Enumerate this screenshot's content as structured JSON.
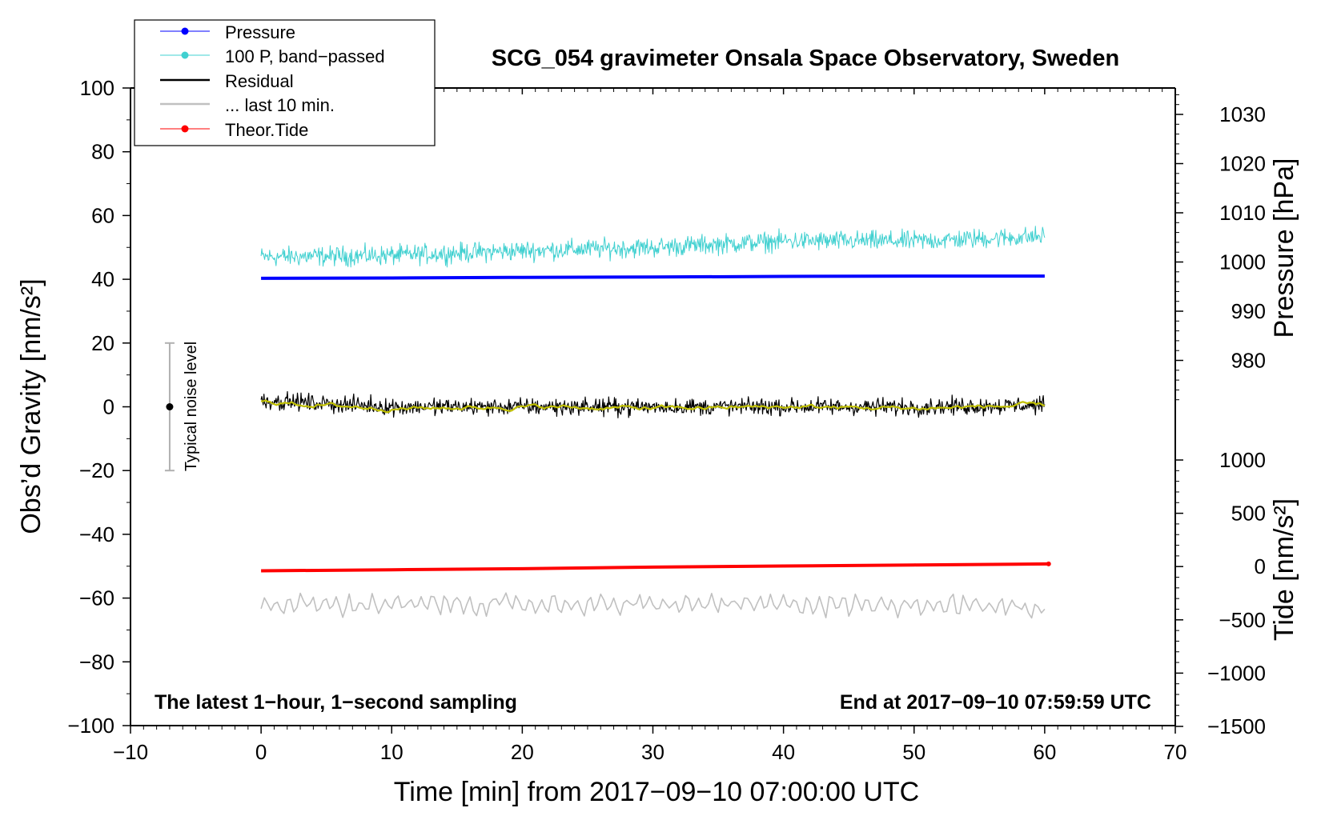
{
  "chart_data": {
    "type": "line",
    "title": "SCG_054 gravimeter Onsala Space Observatory, Sweden",
    "xlabel": "Time [min] from 2017−09−10 07:00:00 UTC",
    "ylabel_left": "Obs’d Gravity [nm/s²]",
    "ylabel_right_top": "Pressure [hPa]",
    "ylabel_right_bottom": "Tide [nm/s²]",
    "xlim": [
      -10,
      70
    ],
    "ylim": [
      -100,
      100
    ],
    "pressure_axis_lim": [
      970,
      1035
    ],
    "tide_axis_lim": [
      -1500,
      1000
    ],
    "x_ticks": [
      -10,
      0,
      10,
      20,
      30,
      40,
      50,
      60,
      70
    ],
    "x_tick_labels": [
      "−10",
      "0",
      "10",
      "20",
      "30",
      "40",
      "50",
      "60",
      "70"
    ],
    "y_ticks": [
      -100,
      -80,
      -60,
      -40,
      -20,
      0,
      20,
      40,
      60,
      80,
      100
    ],
    "y_tick_labels": [
      "−100",
      "−80",
      "−60",
      "−40",
      "−20",
      "0",
      "20",
      "40",
      "60",
      "80",
      "100"
    ],
    "pressure_ticks": [
      980,
      990,
      1000,
      1010,
      1020,
      1030
    ],
    "pressure_tick_labels": [
      "980",
      "990",
      "1000",
      "1010",
      "1020",
      "1030"
    ],
    "tide_ticks": [
      -1500,
      -1000,
      -500,
      0,
      500,
      1000
    ],
    "tide_tick_labels": [
      "−1500",
      "−1000",
      "−500",
      "0",
      "500",
      "1000"
    ],
    "legend_position": "top-left",
    "grid": false,
    "annotations": {
      "bottom_left": "The latest 1−hour, 1−second sampling",
      "bottom_right": "End at 2017−09−10 07:59:59 UTC",
      "noise_label": "Typical noise level"
    },
    "noise_bar": {
      "x": -7,
      "center": 0,
      "low": -20,
      "high": 20
    },
    "series": [
      {
        "name": "Pressure",
        "legend_style": "line-dot",
        "color": "#0000ff",
        "x": [
          0,
          10,
          20,
          30,
          40,
          50,
          60
        ],
        "y": [
          40.3,
          40.4,
          40.6,
          40.7,
          40.9,
          41.0,
          41.0
        ]
      },
      {
        "name": "100 P, band−passed",
        "legend_style": "line-dot",
        "color": "#40d0d0",
        "x": [
          0,
          10,
          20,
          30,
          40,
          50,
          60
        ],
        "y": [
          47.0,
          47.5,
          49.0,
          50.0,
          52.0,
          52.0,
          53.5
        ],
        "noise_amplitude": 3.5
      },
      {
        "name": "Residual",
        "legend_style": "line",
        "color": "#000000",
        "x": [
          0,
          10,
          20,
          30,
          40,
          50,
          60
        ],
        "y": [
          2.0,
          0.0,
          0.0,
          0.0,
          0.0,
          0.0,
          0.5
        ],
        "noise_amplitude": 3.0
      },
      {
        "name": "... last 10 min.",
        "legend_style": "line",
        "color": "#c0c0c0",
        "x": [
          0,
          10,
          20,
          30,
          40,
          50,
          60
        ],
        "y": [
          -62.0,
          -62.0,
          -62.0,
          -62.0,
          -62.0,
          -62.0,
          -63.0
        ],
        "noise_amplitude": 3.0
      },
      {
        "name": "Theor.Tide",
        "legend_style": "line-dot",
        "color": "#ff0000",
        "axis": "tide",
        "x": [
          0,
          10,
          20,
          30,
          40,
          50,
          60.3
        ],
        "y": [
          -40,
          -30,
          -20,
          -5,
          5,
          15,
          25
        ]
      },
      {
        "name": "",
        "legend_style": "none",
        "color": "#c0c000",
        "x": [
          0,
          10,
          20,
          30,
          40,
          50,
          60
        ],
        "y": [
          1.5,
          -0.5,
          0.0,
          -0.5,
          0.0,
          -0.5,
          0.5
        ],
        "noise_amplitude": 0.9
      }
    ]
  }
}
